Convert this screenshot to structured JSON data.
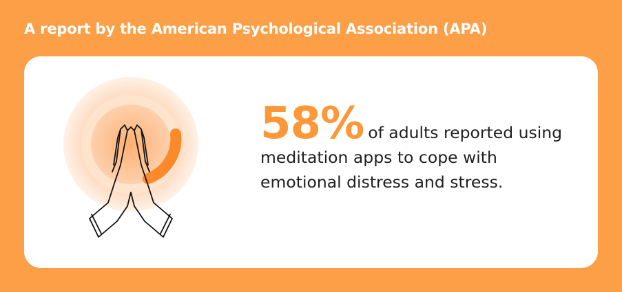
{
  "header": {
    "title": "A report by the American Psychological Association (APA)"
  },
  "stat": {
    "value": "58%",
    "text": "of adults reported using meditation apps to cope with emotional distress and stress."
  }
}
